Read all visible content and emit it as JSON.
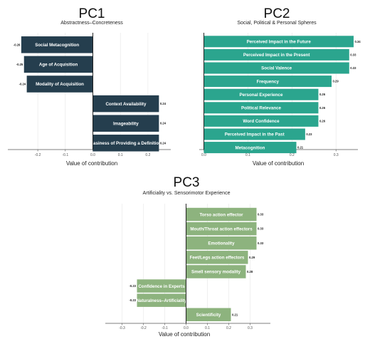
{
  "chart_data": [
    {
      "type": "bar",
      "orientation": "horizontal",
      "title": "PC1",
      "subtitle": "Abstractness–Concreteness",
      "xlabel": "Value of contribution",
      "color": "#253e4e",
      "xlim": [
        -0.26,
        0.26
      ],
      "ticks": [
        -0.2,
        -0.1,
        0.0,
        0.1,
        0.2
      ],
      "tick_labels": [
        "-0.2",
        "-0.1",
        "0.0",
        "0.1",
        "0.2"
      ],
      "categories": [
        "Social Metacognition",
        "Age of Acquisition",
        "Modality of Acquisition",
        "Context Availability",
        "Imageability",
        "Easiness of Providing a Definition"
      ],
      "values": [
        -0.26,
        -0.25,
        -0.24,
        0.24,
        0.24,
        0.24
      ],
      "value_labels": [
        "-0.26",
        "-0.25",
        "-0.24",
        "0.24",
        "0.24",
        "0.24"
      ]
    },
    {
      "type": "bar",
      "orientation": "horizontal",
      "title": "PC2",
      "subtitle": "Social, Political & Personal Spheres",
      "xlabel": "Value of contribution",
      "color": "#2ba58e",
      "xlim": [
        0,
        0.34
      ],
      "ticks": [
        0.0,
        0.1,
        0.2,
        0.3
      ],
      "tick_labels": [
        "0.0",
        "0.1",
        "0.2",
        "0.3"
      ],
      "categories": [
        "Perceived Impact in the Future",
        "Perceived Impact in the Present",
        "Social Valence",
        "Frequency",
        "Personal Experience",
        "Political Relevance",
        "Word Confidence",
        "Perceived Impact in the Past",
        "Metacognition"
      ],
      "values": [
        0.34,
        0.33,
        0.33,
        0.29,
        0.26,
        0.26,
        0.26,
        0.23,
        0.21
      ],
      "value_labels": [
        "0.34",
        "0.33",
        "0.33",
        "0.29",
        "0.26",
        "0.26",
        "0.26",
        "0.23",
        "0.21"
      ]
    },
    {
      "type": "bar",
      "orientation": "horizontal",
      "title": "PC3",
      "subtitle": "Artificiality vs. Sensorimotor Experience",
      "xlabel": "Value of contribution",
      "color": "#8db37e",
      "xlim": [
        -0.35,
        0.38
      ],
      "ticks": [
        -0.3,
        -0.2,
        -0.1,
        0.0,
        0.1,
        0.2,
        0.3
      ],
      "tick_labels": [
        "-0.3",
        "-0.2",
        "-0.1",
        "0.0",
        "0.1",
        "0.2",
        "0.3"
      ],
      "categories": [
        "Torso action effector",
        "Mouth/Throat action effectors",
        "Emotionality",
        "Feet/Legs action effectors",
        "Smell sensory modality",
        "Confidence in Experts",
        "Naturalness–Artificiality",
        "Scientificity"
      ],
      "values": [
        0.33,
        0.33,
        0.33,
        0.29,
        0.28,
        -0.23,
        -0.23,
        0.21
      ],
      "value_labels": [
        "0.33",
        "0.33",
        "0.33",
        "0.29",
        "0.28",
        "-0.23",
        "-0.23",
        "0.21"
      ]
    }
  ]
}
